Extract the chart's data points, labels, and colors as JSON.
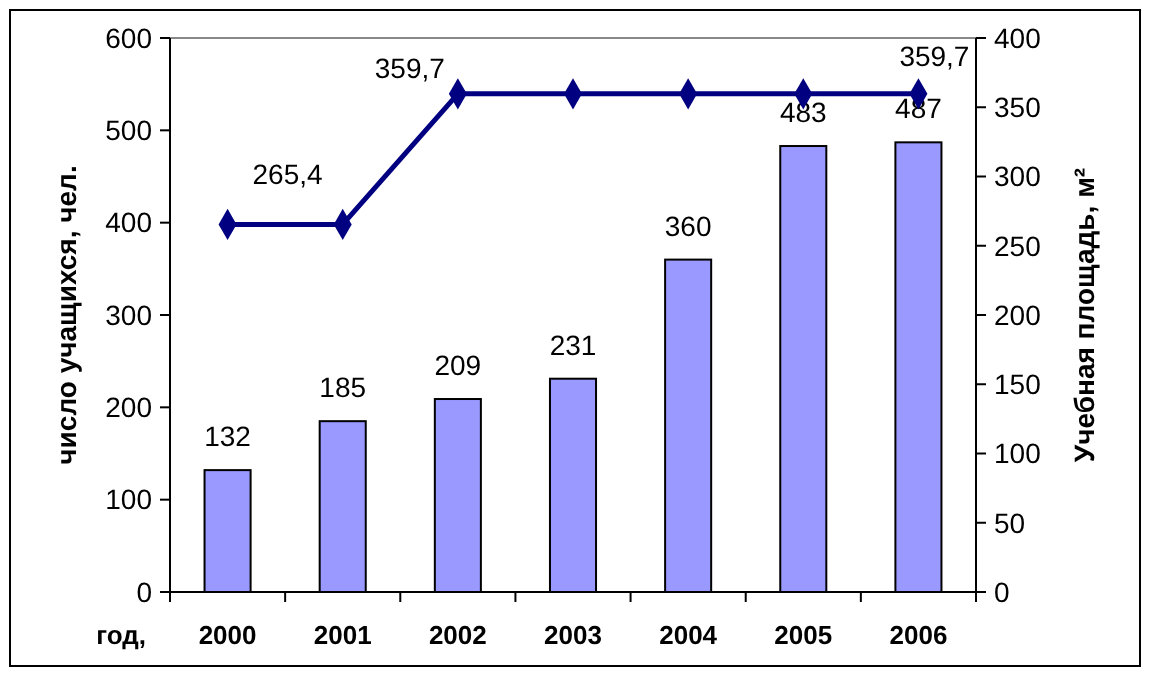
{
  "chart_data": {
    "type": "bar",
    "xlabel": "год,",
    "ylabel": "число учащихся, чел.",
    "y2label": "Учебная площадь, м²",
    "categories": [
      "2000",
      "2001",
      "2002",
      "2003",
      "2004",
      "2005",
      "2006"
    ],
    "series": [
      {
        "color": "#9999ff",
        "values": [
          132,
          185,
          209,
          231,
          360,
          483,
          487
        ],
        "value_labels": [
          "132",
          "185",
          "209",
          "231",
          "360",
          "483",
          "487"
        ]
      },
      {
        "type": "line",
        "axis": "y2",
        "color": "#000080",
        "marker": "diamond",
        "values": [
          265.4,
          265.4,
          359.7,
          359.7,
          359.7,
          359.7,
          359.7
        ],
        "value_labels": [
          "265,4",
          null,
          "359,7",
          null,
          null,
          null,
          "359,7"
        ]
      }
    ],
    "ylim": [
      0,
      600
    ],
    "yticks": [
      0,
      100,
      200,
      300,
      400,
      500,
      600
    ],
    "y2lim": [
      0,
      400
    ],
    "y2ticks": [
      0,
      50,
      100,
      150,
      200,
      250,
      300,
      350,
      400
    ],
    "grid": false
  }
}
